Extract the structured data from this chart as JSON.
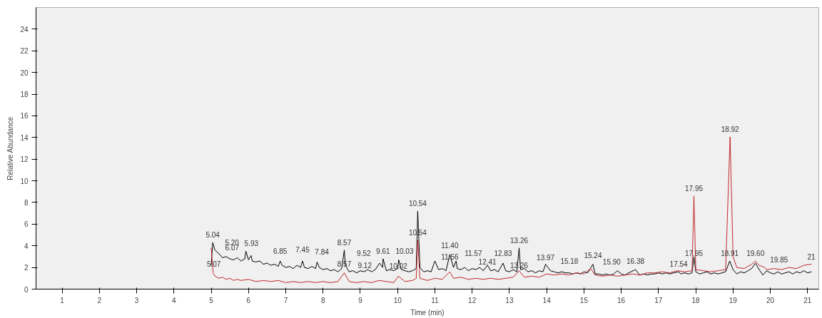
{
  "chart_data": {
    "type": "line",
    "xlabel": "Time (min)",
    "ylabel": "Relative Abundance",
    "xlim": [
      0.3,
      21.3
    ],
    "ylim": [
      0,
      26
    ],
    "xticks": [
      1,
      2,
      3,
      4,
      5,
      6,
      7,
      8,
      9,
      10,
      11,
      12,
      13,
      14,
      15,
      16,
      17,
      18,
      19,
      20,
      21
    ],
    "yticks": [
      0,
      2,
      4,
      6,
      8,
      10,
      12,
      14,
      16,
      18,
      20,
      22,
      24
    ],
    "grid": false,
    "marker": "none",
    "line_style": "solid",
    "series": [
      {
        "color": "#000000",
        "x": [
          5.0,
          5.04,
          5.1,
          5.2,
          5.3,
          5.4,
          5.5,
          5.6,
          5.7,
          5.8,
          5.9,
          5.93,
          6.0,
          6.07,
          6.1,
          6.2,
          6.3,
          6.4,
          6.5,
          6.6,
          6.7,
          6.8,
          6.85,
          6.9,
          7.0,
          7.1,
          7.2,
          7.3,
          7.4,
          7.45,
          7.5,
          7.6,
          7.7,
          7.8,
          7.84,
          7.9,
          8.0,
          8.1,
          8.2,
          8.3,
          8.4,
          8.5,
          8.57,
          8.6,
          8.7,
          8.8,
          8.9,
          9.0,
          9.1,
          9.2,
          9.3,
          9.4,
          9.52,
          9.6,
          9.61,
          9.7,
          9.8,
          9.9,
          10.0,
          10.03,
          10.1,
          10.2,
          10.3,
          10.4,
          10.5,
          10.54,
          10.6,
          10.7,
          10.8,
          10.9,
          11.0,
          11.1,
          11.2,
          11.3,
          11.4,
          11.5,
          11.57,
          11.6,
          11.7,
          11.8,
          11.9,
          12.0,
          12.1,
          12.2,
          12.3,
          12.41,
          12.5,
          12.6,
          12.7,
          12.83,
          12.9,
          13.0,
          13.1,
          13.2,
          13.26,
          13.3,
          13.4,
          13.5,
          13.6,
          13.7,
          13.8,
          13.9,
          13.97,
          14.1,
          14.2,
          14.3,
          14.4,
          14.5,
          14.6,
          14.7,
          14.8,
          14.9,
          15.0,
          15.1,
          15.24,
          15.3,
          15.4,
          15.5,
          15.6,
          15.7,
          15.8,
          15.9,
          16.0,
          16.1,
          16.2,
          16.38,
          16.5,
          16.6,
          16.7,
          16.8,
          16.9,
          17.0,
          17.1,
          17.2,
          17.3,
          17.4,
          17.54,
          17.6,
          17.7,
          17.8,
          17.9,
          17.95,
          18.0,
          18.1,
          18.2,
          18.3,
          18.4,
          18.5,
          18.6,
          18.7,
          18.8,
          18.91,
          19.0,
          19.1,
          19.2,
          19.3,
          19.4,
          19.5,
          19.6,
          19.7,
          19.8,
          19.9,
          20.0,
          20.1,
          20.2,
          20.3,
          20.4,
          20.5,
          20.6,
          20.7,
          20.8,
          20.9,
          21.0,
          21.1
        ],
        "values": [
          2.2,
          4.3,
          3.6,
          3.3,
          2.9,
          3.0,
          2.8,
          2.7,
          2.9,
          2.6,
          2.8,
          3.5,
          2.7,
          3.1,
          2.6,
          2.5,
          2.6,
          2.3,
          2.4,
          2.2,
          2.3,
          2.1,
          2.6,
          2.2,
          2.0,
          2.1,
          1.9,
          2.2,
          2.0,
          2.6,
          2.0,
          1.9,
          2.1,
          1.9,
          2.5,
          2.0,
          1.8,
          1.9,
          1.7,
          1.8,
          1.6,
          1.9,
          3.6,
          2.2,
          1.6,
          1.7,
          1.5,
          1.7,
          1.6,
          1.8,
          1.6,
          1.8,
          2.4,
          2.0,
          2.8,
          1.7,
          1.8,
          1.7,
          1.9,
          2.7,
          1.8,
          1.7,
          1.6,
          1.7,
          1.9,
          7.2,
          2.0,
          1.6,
          1.7,
          1.6,
          2.6,
          1.8,
          1.9,
          1.7,
          3.2,
          2.0,
          2.6,
          1.9,
          1.8,
          2.0,
          1.7,
          1.9,
          1.8,
          2.0,
          1.7,
          2.2,
          1.7,
          1.8,
          1.6,
          2.4,
          1.7,
          1.6,
          1.8,
          1.6,
          3.8,
          1.8,
          1.9,
          1.6,
          1.7,
          1.5,
          1.7,
          1.6,
          2.3,
          1.7,
          1.6,
          1.5,
          1.6,
          1.5,
          1.5,
          1.4,
          1.5,
          1.4,
          1.6,
          1.5,
          2.3,
          1.4,
          1.4,
          1.3,
          1.4,
          1.3,
          1.4,
          1.7,
          1.4,
          1.3,
          1.5,
          1.8,
          1.3,
          1.4,
          1.3,
          1.4,
          1.4,
          1.5,
          1.4,
          1.5,
          1.4,
          1.5,
          1.6,
          1.4,
          1.5,
          1.4,
          1.5,
          3.0,
          1.6,
          1.4,
          1.5,
          1.6,
          1.4,
          1.5,
          1.4,
          1.5,
          1.6,
          2.6,
          1.8,
          1.4,
          1.6,
          1.5,
          1.7,
          1.9,
          2.4,
          1.8,
          1.3,
          1.7,
          1.5,
          1.4,
          1.6,
          1.4,
          1.5,
          1.6,
          1.4,
          1.6,
          1.5,
          1.7,
          1.5,
          1.6
        ]
      },
      {
        "color": "#c0282d",
        "x": [
          5.0,
          5.05,
          5.1,
          5.2,
          5.3,
          5.4,
          5.5,
          5.6,
          5.7,
          5.8,
          6.0,
          6.2,
          6.4,
          6.6,
          6.8,
          7.0,
          7.2,
          7.4,
          7.6,
          7.8,
          8.0,
          8.2,
          8.4,
          8.57,
          8.7,
          8.9,
          9.1,
          9.3,
          9.5,
          9.7,
          9.9,
          10.02,
          10.2,
          10.4,
          10.5,
          10.54,
          10.6,
          10.8,
          11.0,
          11.2,
          11.4,
          11.5,
          11.7,
          11.9,
          12.1,
          12.3,
          12.5,
          12.7,
          12.9,
          13.1,
          13.26,
          13.4,
          13.6,
          13.8,
          14.0,
          14.2,
          14.4,
          14.6,
          14.8,
          15.0,
          15.18,
          15.3,
          15.5,
          15.7,
          15.9,
          16.1,
          16.3,
          16.5,
          16.7,
          16.9,
          17.1,
          17.3,
          17.5,
          17.7,
          17.9,
          17.95,
          18.0,
          18.2,
          18.4,
          18.6,
          18.8,
          18.92,
          19.0,
          19.1,
          19.3,
          19.5,
          19.6,
          19.7,
          19.85,
          19.9,
          20.1,
          20.3,
          20.5,
          20.7,
          20.9,
          21.1
        ],
        "values": [
          3.8,
          1.5,
          1.2,
          1.0,
          1.1,
          0.9,
          1.0,
          0.8,
          0.9,
          0.8,
          0.9,
          0.7,
          0.8,
          0.7,
          0.8,
          0.6,
          0.7,
          0.6,
          0.7,
          0.6,
          0.7,
          0.6,
          0.7,
          1.5,
          0.7,
          0.6,
          0.7,
          0.6,
          0.8,
          0.7,
          0.6,
          1.2,
          0.7,
          0.8,
          1.0,
          4.5,
          1.0,
          0.8,
          1.0,
          0.9,
          1.6,
          1.0,
          1.1,
          0.9,
          1.0,
          0.9,
          1.0,
          0.9,
          1.0,
          1.1,
          1.7,
          1.1,
          1.2,
          1.1,
          1.4,
          1.3,
          1.4,
          1.3,
          1.5,
          1.4,
          1.9,
          1.3,
          1.2,
          1.3,
          1.2,
          1.3,
          1.4,
          1.3,
          1.5,
          1.5,
          1.6,
          1.5,
          1.7,
          1.6,
          1.7,
          8.6,
          1.8,
          1.7,
          1.6,
          1.7,
          1.8,
          14.05,
          3.0,
          2.0,
          1.9,
          2.3,
          2.6,
          2.2,
          2.0,
          1.8,
          1.9,
          1.8,
          2.0,
          1.9,
          2.2,
          2.3
        ]
      }
    ],
    "annotations": [
      {
        "text": "5.04",
        "x": 5.04,
        "y": 4.3
      },
      {
        "text": "5.20",
        "x": 5.2,
        "y": 3.6
      },
      {
        "text": "5.07",
        "x": 5.07,
        "y": 1.6
      },
      {
        "text": "5.93",
        "x": 5.93,
        "y": 3.5
      },
      {
        "text": "6.07",
        "x": 6.07,
        "y": 3.1
      },
      {
        "text": "6.85",
        "x": 6.85,
        "y": 2.8
      },
      {
        "text": "7.45",
        "x": 7.45,
        "y": 2.9
      },
      {
        "text": "7.84",
        "x": 7.84,
        "y": 2.7
      },
      {
        "text": "8.57",
        "x": 8.57,
        "y": 3.6
      },
      {
        "text": "8.57",
        "x": 8.57,
        "y": 1.6
      },
      {
        "text": "9.12",
        "x": 9.12,
        "y": 1.5
      },
      {
        "text": "9.52",
        "x": 9.52,
        "y": 2.6
      },
      {
        "text": "9.61",
        "x": 9.61,
        "y": 2.8
      },
      {
        "text": "10.03",
        "x": 10.03,
        "y": 2.8
      },
      {
        "text": "10.02",
        "x": 10.02,
        "y": 1.4
      },
      {
        "text": "10.54",
        "x": 10.54,
        "y": 7.2
      },
      {
        "text": "10.54",
        "x": 10.54,
        "y": 4.5
      },
      {
        "text": "11.40",
        "x": 11.4,
        "y": 3.3
      },
      {
        "text": "11.56",
        "x": 11.56,
        "y": 2.3
      },
      {
        "text": "11.57",
        "x": 11.57,
        "y": 2.6
      },
      {
        "text": "12.41",
        "x": 12.41,
        "y": 1.8
      },
      {
        "text": "12.83",
        "x": 12.83,
        "y": 2.6
      },
      {
        "text": "13.26",
        "x": 13.26,
        "y": 3.8
      },
      {
        "text": "13.26",
        "x": 13.26,
        "y": 1.5
      },
      {
        "text": "13.97",
        "x": 13.97,
        "y": 2.2
      },
      {
        "text": "15.18",
        "x": 15.18,
        "y": 1.9
      },
      {
        "text": "15.24",
        "x": 15.24,
        "y": 2.4
      },
      {
        "text": "15.90",
        "x": 15.9,
        "y": 1.8
      },
      {
        "text": "16.38",
        "x": 16.38,
        "y": 1.9
      },
      {
        "text": "17.54",
        "x": 17.54,
        "y": 1.6
      },
      {
        "text": "17.95",
        "x": 17.95,
        "y": 8.6
      },
      {
        "text": "17.95",
        "x": 17.95,
        "y": 2.6
      },
      {
        "text": "18.92",
        "x": 18.92,
        "y": 14.05
      },
      {
        "text": "18.91",
        "x": 18.91,
        "y": 2.6
      },
      {
        "text": "19.60",
        "x": 19.6,
        "y": 2.6
      },
      {
        "text": "19.85",
        "x": 19.85,
        "y": 2.0
      },
      {
        "text": "21",
        "x": 21.1,
        "y": 2.3
      }
    ]
  }
}
